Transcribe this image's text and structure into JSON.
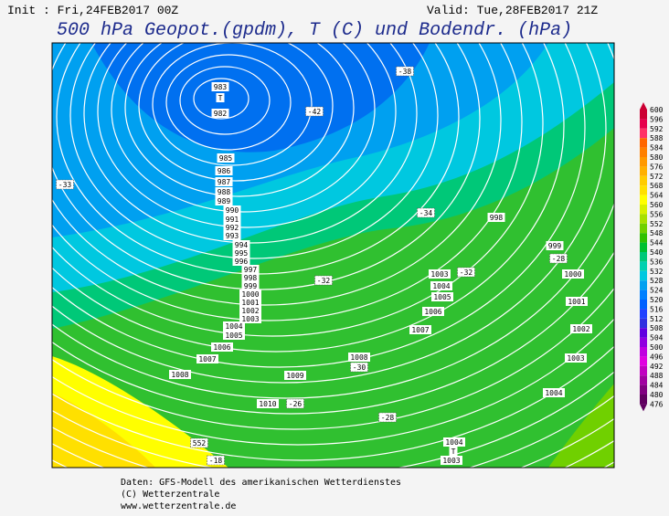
{
  "header": {
    "init": "Init : Fri,24FEB2017 00Z",
    "valid": "Valid: Tue,28FEB2017 21Z",
    "title": "500 hPa Geopot.(gpdm), T (C) und Bodendr. (hPa)"
  },
  "map": {
    "isobar_labels": [
      "983",
      "T",
      "982",
      "985",
      "986",
      "987",
      "988",
      "989",
      "990",
      "991",
      "992",
      "993",
      "994",
      "995",
      "996",
      "997",
      "998",
      "999",
      "1000",
      "1001",
      "1002",
      "1003",
      "1004",
      "1005",
      "1006",
      "1007",
      "1008",
      "1009",
      "1010",
      "1008",
      "998",
      "999",
      "1000",
      "1001",
      "1002",
      "1003",
      "1004",
      "1003",
      "1004",
      "1005",
      "1006",
      "1007",
      "1004",
      "T",
      "1003"
    ],
    "temperature_labels": [
      "-38",
      "-42",
      "-33",
      "-34",
      "-32",
      "-28",
      "-32",
      "-30",
      "-26",
      "-28",
      "-18",
      "552"
    ]
  },
  "colorbar": {
    "labels": [
      600,
      596,
      592,
      588,
      584,
      580,
      576,
      572,
      568,
      564,
      560,
      556,
      552,
      548,
      544,
      540,
      536,
      532,
      528,
      524,
      520,
      516,
      512,
      508,
      504,
      500,
      496,
      492,
      488,
      484,
      480,
      476
    ],
    "colors": [
      "#cc0033",
      "#e6004c",
      "#ff3366",
      "#ff6600",
      "#ff8000",
      "#ff9900",
      "#ffb000",
      "#ffcc00",
      "#ffe000",
      "#ffff00",
      "#d8f000",
      "#a8e000",
      "#70d000",
      "#30c000",
      "#00c030",
      "#00c878",
      "#00d0b0",
      "#00c8e0",
      "#00a0f0",
      "#0080ff",
      "#0060ff",
      "#2040ff",
      "#3030e0",
      "#6000e0",
      "#9000e0",
      "#c000e0",
      "#e000e0",
      "#c000c0",
      "#a000a0",
      "#800080",
      "#600060"
    ]
  },
  "footer": {
    "lines": [
      "Daten: GFS-Modell des amerikanischen Wetterdienstes",
      "(C) Wetterzentrale",
      "www.wetterzentrale.de"
    ]
  }
}
